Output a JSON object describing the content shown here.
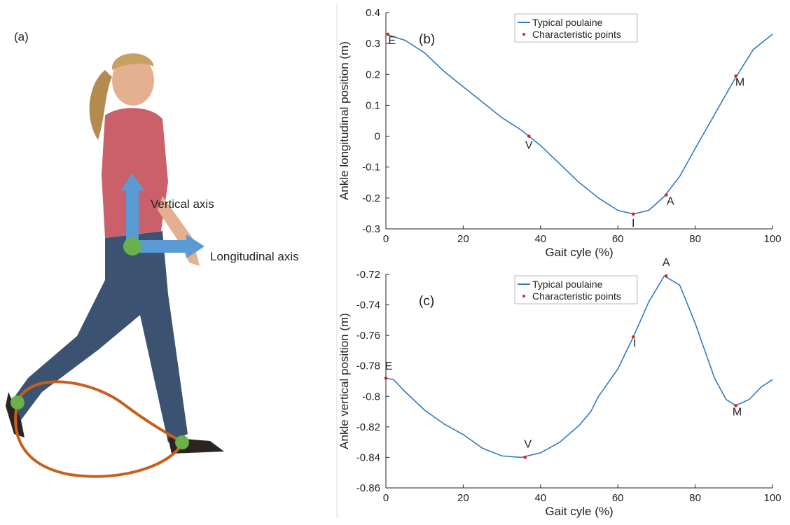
{
  "panel_a": {
    "label": "(a)",
    "vertical_axis": "Vertical axis",
    "longitudinal_axis": "Longitudinal axis"
  },
  "chart_data": [
    {
      "type": "line",
      "panel_label": "(b)",
      "xlabel": "Gait cyle (%)",
      "ylabel": "Ankle longitudinal position (m)",
      "xlim": [
        0,
        100
      ],
      "xticks": [
        0,
        20,
        40,
        60,
        80,
        100
      ],
      "ylim": [
        -0.3,
        0.4
      ],
      "yticks": [
        -0.3,
        -0.2,
        -0.1,
        0,
        0.1,
        0.2,
        0.3,
        0.4
      ],
      "legend": "upper center",
      "series": [
        {
          "name": "Typical poulaine",
          "color": "#2f7bbf",
          "mode": "line",
          "x": [
            0,
            5,
            10,
            15,
            20,
            25,
            30,
            35,
            37,
            40,
            45,
            50,
            55,
            60,
            64,
            68,
            72,
            76,
            80,
            85,
            90,
            95,
            100
          ],
          "values": [
            0.33,
            0.31,
            0.27,
            0.21,
            0.16,
            0.11,
            0.06,
            0.02,
            0.0,
            -0.03,
            -0.09,
            -0.15,
            -0.2,
            -0.24,
            -0.252,
            -0.24,
            -0.195,
            -0.13,
            -0.04,
            0.07,
            0.18,
            0.28,
            0.33
          ]
        },
        {
          "name": "Characteristic points",
          "color": "#e0201b",
          "mode": "markers",
          "x": [
            0.5,
            37,
            64,
            72.5,
            90.5
          ],
          "values": [
            0.33,
            0.0,
            -0.252,
            -0.19,
            0.195
          ],
          "labels": [
            "E",
            "V",
            "I",
            "A",
            "M"
          ]
        }
      ]
    },
    {
      "type": "line",
      "panel_label": "(c)",
      "xlabel": "Gait cyle (%)",
      "ylabel": "Ankle vertical position (m)",
      "xlim": [
        0,
        100
      ],
      "xticks": [
        0,
        20,
        40,
        60,
        80,
        100
      ],
      "ylim": [
        -0.86,
        -0.72
      ],
      "yticks": [
        -0.86,
        -0.84,
        -0.82,
        -0.8,
        -0.78,
        -0.76,
        -0.74,
        -0.72
      ],
      "legend": "upper center",
      "series": [
        {
          "name": "Typical poulaine",
          "color": "#2f7bbf",
          "mode": "line",
          "x": [
            0,
            2,
            5,
            10,
            15,
            20,
            25,
            30,
            35,
            40,
            45,
            50,
            53,
            55,
            60,
            64,
            68,
            72,
            76,
            80,
            85,
            88,
            90.5,
            94,
            97,
            100
          ],
          "values": [
            -0.788,
            -0.789,
            -0.797,
            -0.809,
            -0.818,
            -0.825,
            -0.834,
            -0.839,
            -0.84,
            -0.837,
            -0.83,
            -0.819,
            -0.81,
            -0.8,
            -0.782,
            -0.761,
            -0.738,
            -0.721,
            -0.727,
            -0.752,
            -0.788,
            -0.802,
            -0.806,
            -0.802,
            -0.794,
            -0.789
          ]
        },
        {
          "name": "Characteristic points",
          "color": "#e0201b",
          "mode": "markers",
          "x": [
            0,
            36,
            64,
            72.5,
            90.5
          ],
          "values": [
            -0.788,
            -0.84,
            -0.761,
            -0.721,
            -0.806
          ],
          "labels": [
            "E",
            "V",
            "I",
            "A",
            "M"
          ]
        }
      ]
    }
  ]
}
